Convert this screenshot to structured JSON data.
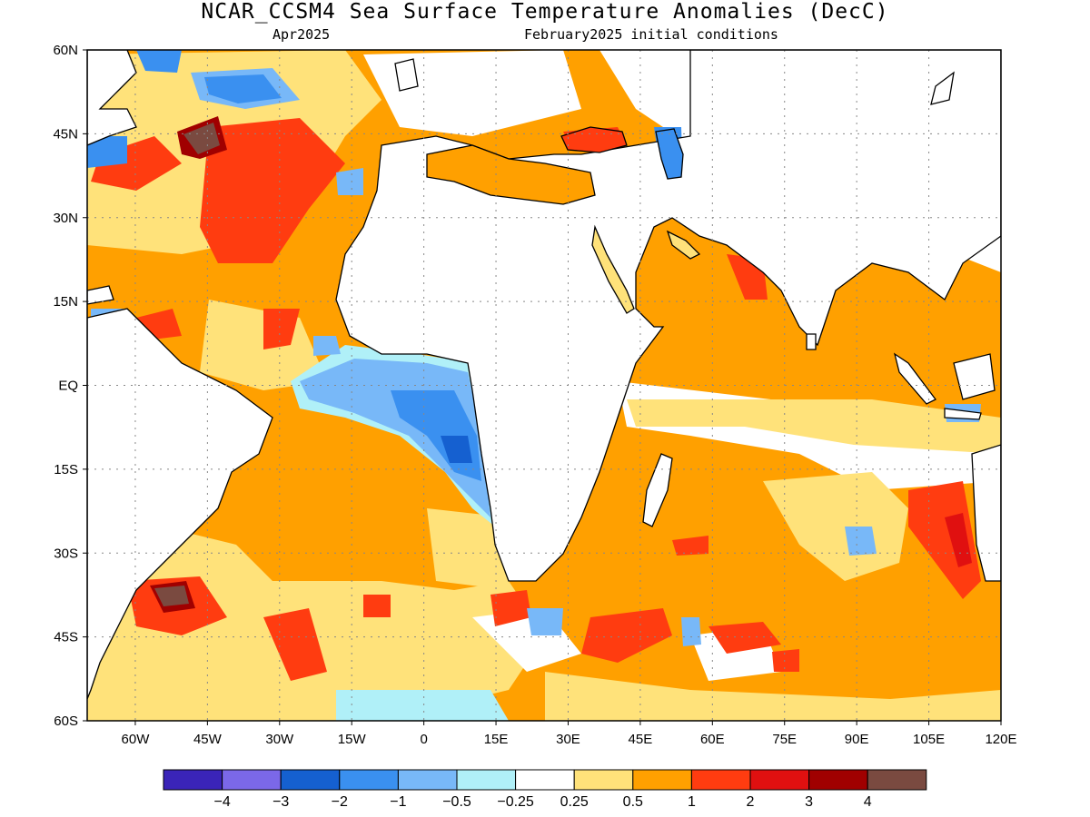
{
  "title": "NCAR_CCSM4 Sea Surface Temperature Anomalies (DecC)",
  "subtitle_left": "Apr2025",
  "subtitle_right": "February2025 initial conditions",
  "map": {
    "lon_range": [
      -70,
      120
    ],
    "lat_range": [
      -60,
      60
    ],
    "lat_ticks": [
      {
        "lat": 60,
        "label": "60N"
      },
      {
        "lat": 45,
        "label": "45N"
      },
      {
        "lat": 30,
        "label": "30N"
      },
      {
        "lat": 15,
        "label": "15N"
      },
      {
        "lat": 0,
        "label": "EQ"
      },
      {
        "lat": -15,
        "label": "15S"
      },
      {
        "lat": -30,
        "label": "30S"
      },
      {
        "lat": -45,
        "label": "45S"
      },
      {
        "lat": -60,
        "label": "60S"
      }
    ],
    "lon_ticks": [
      {
        "lon": -60,
        "label": "60W"
      },
      {
        "lon": -45,
        "label": "45W"
      },
      {
        "lon": -30,
        "label": "30W"
      },
      {
        "lon": -15,
        "label": "15W"
      },
      {
        "lon": 0,
        "label": "0"
      },
      {
        "lon": 15,
        "label": "15E"
      },
      {
        "lon": 30,
        "label": "30E"
      },
      {
        "lon": 45,
        "label": "45E"
      },
      {
        "lon": 60,
        "label": "60E"
      },
      {
        "lon": 75,
        "label": "75E"
      },
      {
        "lon": 90,
        "label": "90E"
      },
      {
        "lon": 105,
        "label": "105E"
      },
      {
        "lon": 120,
        "label": "120E"
      }
    ],
    "grid": true
  },
  "colorbar": {
    "colors": [
      "#3a24b8",
      "#7b68e8",
      "#1560d0",
      "#3a90f0",
      "#78b8f8",
      "#b0f0f8",
      "#ffffff",
      "#ffe27a",
      "#ffa000",
      "#ff3c10",
      "#e01010",
      "#a00000",
      "#7a4a40"
    ],
    "labels": [
      "-4",
      "-3",
      "-2",
      "-1",
      "-0.5",
      "-0.25",
      "0.25",
      "0.5",
      "1",
      "2",
      "3",
      "4"
    ]
  },
  "colors": {
    "land": "#ffffff",
    "coast": "#000000",
    "warm_weak": "#ffe27a",
    "warm": "#ffa000",
    "warm_strong": "#ff3c10",
    "very_warm": "#e01010",
    "extreme": "#7a4a40",
    "cool_weak": "#b0f0f8",
    "cool": "#78b8f8",
    "cool_strong": "#3a90f0",
    "cold": "#1560d0",
    "very_cold": "#7b68e8"
  }
}
